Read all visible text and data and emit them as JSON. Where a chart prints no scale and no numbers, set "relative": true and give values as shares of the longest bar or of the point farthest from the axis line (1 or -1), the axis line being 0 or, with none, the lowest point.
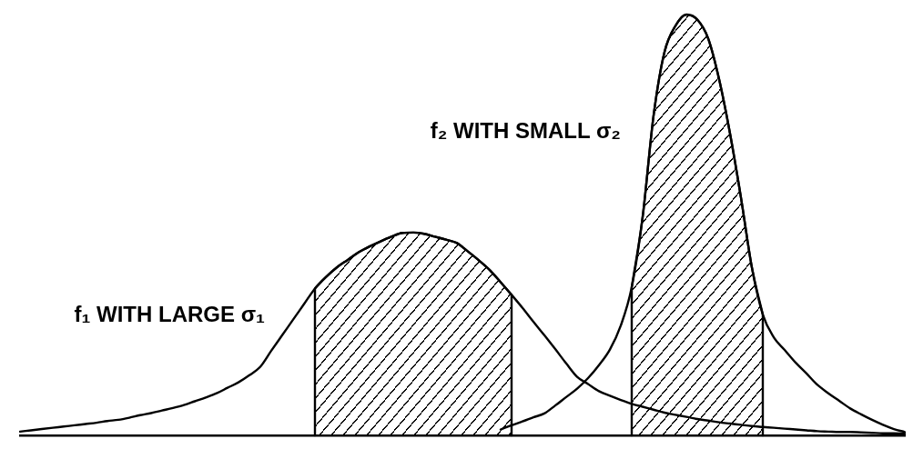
{
  "chart_data": {
    "type": "line",
    "relative": true,
    "tick_labels": false,
    "categories": [
      null,
      null,
      null,
      null,
      null,
      null,
      null,
      null,
      null,
      null,
      null,
      null,
      null,
      null,
      null,
      null,
      null,
      null,
      null,
      null,
      null,
      null,
      null,
      null,
      null,
      null,
      null,
      null,
      null,
      null,
      null,
      null,
      null,
      null,
      null,
      null,
      null,
      null,
      null,
      null,
      null,
      null,
      null,
      null,
      null,
      null,
      null,
      null,
      null,
      null,
      null,
      null,
      null,
      null,
      null,
      null,
      null,
      null,
      null,
      null,
      null,
      null,
      null,
      null,
      null,
      null,
      null,
      null,
      null,
      null,
      null,
      null,
      null,
      null,
      null,
      null,
      null,
      null,
      null,
      null,
      null,
      null
    ],
    "series": [
      {
        "name": "f₁ WITH LARGE σ₁",
        "type": "line",
        "color": "#000000",
        "values": [
          0.009,
          0.012,
          0.015,
          0.018,
          0.021,
          0.024,
          0.027,
          0.03,
          0.034,
          0.037,
          0.042,
          0.048,
          0.053,
          0.059,
          0.065,
          0.072,
          0.081,
          0.09,
          0.1,
          0.113,
          0.126,
          0.143,
          0.163,
          0.201,
          0.238,
          0.275,
          0.312,
          0.349,
          0.376,
          0.399,
          0.417,
          0.435,
          0.449,
          0.461,
          0.472,
          0.481,
          0.482,
          0.479,
          0.472,
          0.465,
          0.457,
          0.437,
          0.416,
          0.393,
          0.364,
          0.334,
          0.303,
          0.27,
          0.238,
          0.205,
          0.171,
          0.139,
          0.122,
          0.105,
          0.094,
          0.084,
          0.075,
          0.068,
          0.061,
          0.054,
          0.049,
          0.044,
          0.039,
          0.035,
          0.031,
          0.028,
          0.025,
          0.022,
          0.02,
          0.018,
          0.016,
          0.014,
          0.012,
          0.01,
          0.009,
          0.008,
          0.008,
          0.007,
          0.006,
          0.005,
          0.005,
          0.004
        ]
      },
      {
        "name": "f₂ WITH SMALL σ₂",
        "type": "line",
        "color": "#000000",
        "values": [
          null,
          null,
          null,
          null,
          null,
          null,
          null,
          null,
          null,
          null,
          null,
          null,
          null,
          null,
          null,
          null,
          null,
          null,
          null,
          null,
          null,
          null,
          null,
          null,
          null,
          null,
          null,
          null,
          null,
          null,
          null,
          null,
          null,
          null,
          null,
          null,
          null,
          null,
          null,
          null,
          null,
          null,
          null,
          null,
          0.014,
          0.024,
          0.033,
          0.043,
          0.052,
          0.071,
          0.091,
          0.111,
          0.136,
          0.167,
          0.204,
          0.261,
          0.352,
          0.519,
          0.76,
          0.911,
          0.973,
          1,
          0.988,
          0.943,
          0.846,
          0.717,
          0.565,
          0.399,
          0.287,
          0.233,
          0.203,
          0.173,
          0.147,
          0.12,
          0.1,
          0.082,
          0.064,
          0.05,
          0.037,
          0.025,
          0.015,
          0.008
        ]
      },
      {
        "type": "area",
        "color": "#000000",
        "values": [
          null,
          null,
          null,
          null,
          null,
          null,
          null,
          null,
          null,
          null,
          null,
          null,
          null,
          null,
          null,
          null,
          null,
          null,
          null,
          null,
          null,
          null,
          null,
          null,
          null,
          null,
          null,
          0.349,
          0.376,
          0.399,
          0.417,
          0.435,
          0.449,
          0.461,
          0.472,
          0.481,
          0.482,
          0.479,
          0.472,
          0.465,
          0.457,
          0.437,
          0.416,
          0.393,
          0.364,
          0.334,
          null,
          null,
          null,
          null,
          null,
          null,
          null,
          null,
          null,
          null,
          null,
          null,
          null,
          null,
          null,
          null,
          null,
          null,
          null,
          null,
          null,
          null,
          null,
          null,
          null,
          null,
          null,
          null,
          null,
          null,
          null,
          null,
          null,
          null,
          null,
          null
        ]
      },
      {
        "type": "area",
        "color": "#000000",
        "values": [
          null,
          null,
          null,
          null,
          null,
          null,
          null,
          null,
          null,
          null,
          null,
          null,
          null,
          null,
          null,
          null,
          null,
          null,
          null,
          null,
          null,
          null,
          null,
          null,
          null,
          null,
          null,
          null,
          null,
          null,
          null,
          null,
          null,
          null,
          null,
          null,
          null,
          null,
          null,
          null,
          null,
          null,
          null,
          null,
          null,
          null,
          null,
          null,
          null,
          null,
          null,
          null,
          null,
          null,
          null,
          null,
          0.352,
          0.519,
          0.76,
          0.911,
          0.973,
          1,
          0.988,
          0.943,
          0.846,
          0.717,
          0.565,
          0.399,
          0.287,
          null,
          null,
          null,
          null,
          null,
          null,
          null,
          null,
          null,
          null,
          null,
          null,
          null
        ]
      }
    ]
  }
}
